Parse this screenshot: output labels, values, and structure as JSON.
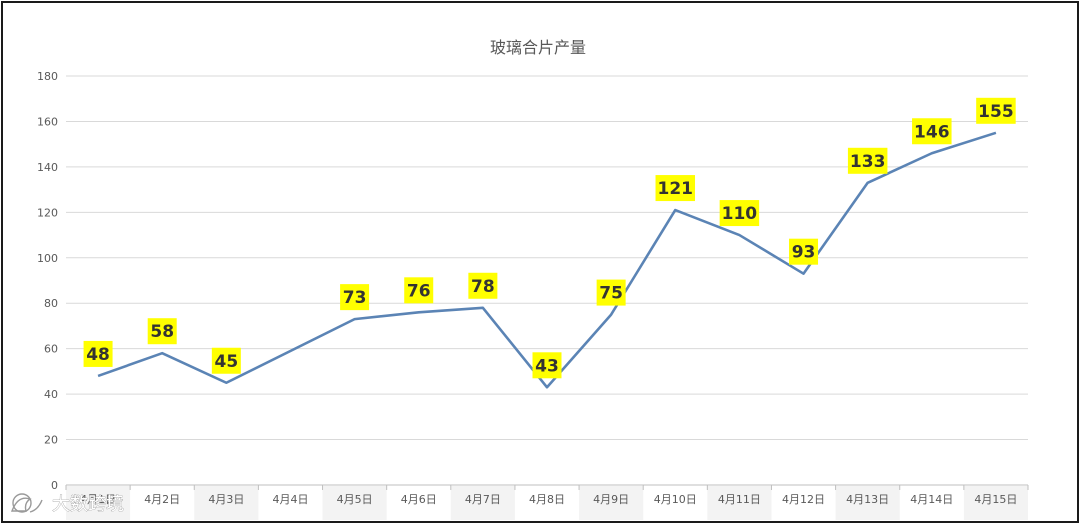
{
  "chart_data": {
    "type": "line",
    "title": "玻璃合片产量",
    "categories": [
      "4月1日",
      "4月2日",
      "4月3日",
      "4月4日",
      "4月5日",
      "4月6日",
      "4月7日",
      "4月8日",
      "4月9日",
      "4月10日",
      "4月11日",
      "4月12日",
      "4月13日",
      "4月14日",
      "4月15日"
    ],
    "series": [
      {
        "values": [
          48,
          58,
          45,
          null,
          73,
          76,
          78,
          43,
          75,
          121,
          110,
          93,
          133,
          146,
          155
        ]
      }
    ],
    "yticks": [
      0,
      20,
      40,
      60,
      80,
      100,
      120,
      140,
      160,
      180
    ],
    "ylim": [
      0,
      180
    ],
    "grid": true,
    "line_color": "#5b84b5",
    "label_bg_color": "#ffff00",
    "xlabel": "",
    "ylabel": ""
  },
  "watermark": {
    "text": "大数跨境"
  }
}
